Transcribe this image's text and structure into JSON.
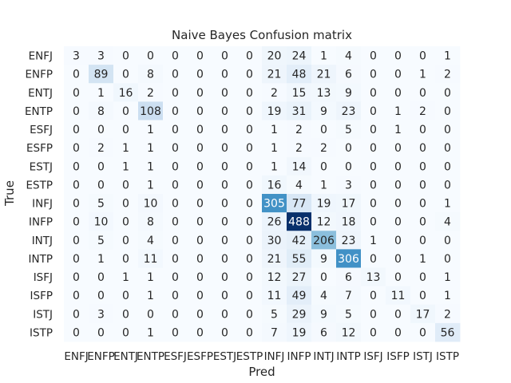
{
  "chart_data": {
    "type": "heatmap",
    "title": "Naive Bayes Confusion matrix",
    "xlabel": "Pred",
    "ylabel": "True",
    "colormap": "Blues",
    "colorbar": false,
    "vmin": 0,
    "vmax": 488,
    "x_categories": [
      "ENFJ",
      "ENFP",
      "ENTJ",
      "ENTP",
      "ESFJ",
      "ESFP",
      "ESTJ",
      "ESTP",
      "INFJ",
      "INFP",
      "INTJ",
      "INTP",
      "ISFJ",
      "ISFP",
      "ISTJ",
      "ISTP"
    ],
    "y_categories": [
      "ENFJ",
      "ENFP",
      "ENTJ",
      "ENTP",
      "ESFJ",
      "ESFP",
      "ESTJ",
      "ESTP",
      "INFJ",
      "INFP",
      "INTJ",
      "INTP",
      "ISFJ",
      "ISFP",
      "ISTJ",
      "ISTP"
    ],
    "values": [
      [
        3,
        3,
        0,
        0,
        0,
        0,
        0,
        0,
        20,
        24,
        1,
        4,
        0,
        0,
        0,
        1
      ],
      [
        0,
        89,
        0,
        8,
        0,
        0,
        0,
        0,
        21,
        48,
        21,
        6,
        0,
        0,
        1,
        2
      ],
      [
        0,
        1,
        16,
        2,
        0,
        0,
        0,
        0,
        2,
        15,
        13,
        9,
        0,
        0,
        0,
        0
      ],
      [
        0,
        8,
        0,
        108,
        0,
        0,
        0,
        0,
        19,
        31,
        9,
        23,
        0,
        1,
        2,
        0
      ],
      [
        0,
        0,
        0,
        1,
        0,
        0,
        0,
        0,
        1,
        2,
        0,
        5,
        0,
        1,
        0,
        0
      ],
      [
        0,
        2,
        1,
        1,
        0,
        0,
        0,
        0,
        1,
        2,
        2,
        0,
        0,
        0,
        0,
        0
      ],
      [
        0,
        0,
        1,
        1,
        0,
        0,
        0,
        0,
        1,
        14,
        0,
        0,
        0,
        0,
        0,
        0
      ],
      [
        0,
        0,
        0,
        1,
        0,
        0,
        0,
        0,
        16,
        4,
        1,
        3,
        0,
        0,
        0,
        0
      ],
      [
        0,
        5,
        0,
        10,
        0,
        0,
        0,
        0,
        305,
        77,
        19,
        17,
        0,
        0,
        0,
        1
      ],
      [
        0,
        10,
        0,
        8,
        0,
        0,
        0,
        0,
        26,
        488,
        12,
        18,
        0,
        0,
        0,
        4
      ],
      [
        0,
        5,
        0,
        4,
        0,
        0,
        0,
        0,
        30,
        42,
        206,
        23,
        1,
        0,
        0,
        0
      ],
      [
        0,
        1,
        0,
        11,
        0,
        0,
        0,
        0,
        21,
        55,
        9,
        306,
        0,
        0,
        1,
        0
      ],
      [
        0,
        0,
        1,
        1,
        0,
        0,
        0,
        0,
        12,
        27,
        0,
        6,
        13,
        0,
        0,
        1
      ],
      [
        0,
        0,
        0,
        1,
        0,
        0,
        0,
        0,
        11,
        49,
        4,
        7,
        0,
        11,
        0,
        1
      ],
      [
        0,
        3,
        0,
        0,
        0,
        0,
        0,
        0,
        5,
        29,
        9,
        5,
        0,
        0,
        17,
        2
      ],
      [
        0,
        0,
        0,
        1,
        0,
        0,
        0,
        0,
        7,
        19,
        6,
        12,
        0,
        0,
        0,
        56
      ]
    ]
  }
}
